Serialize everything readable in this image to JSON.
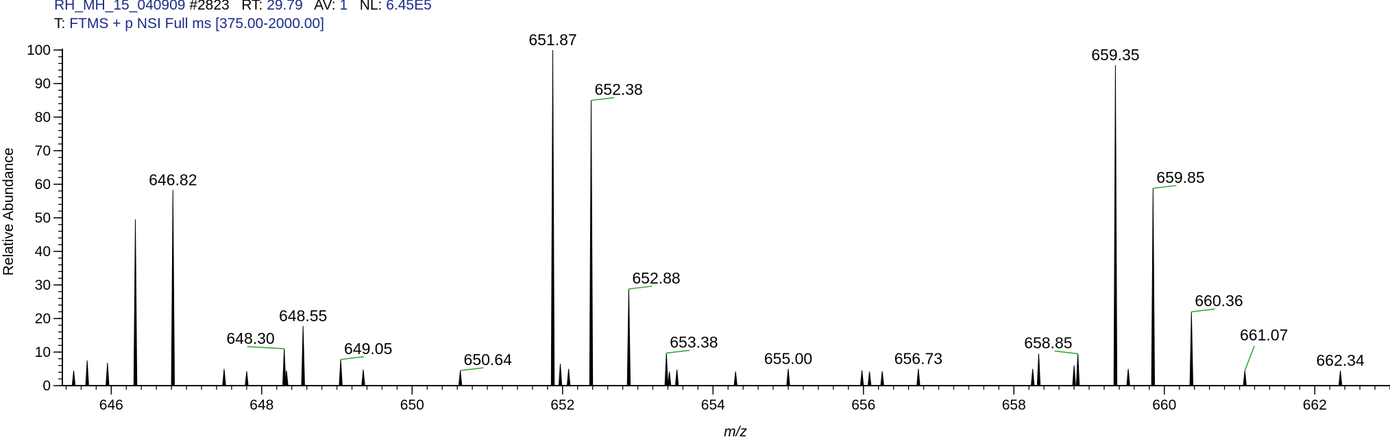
{
  "header": {
    "line1": {
      "filename": "RH_MH_15_040909",
      "scan": "#2823",
      "rt_key": "RT:",
      "rt_value": "29.79",
      "av_key": "AV:",
      "av_value": "1",
      "nl_key": "NL:",
      "nl_value": "6.45E5"
    },
    "line2": {
      "t_key": "T:",
      "t_value": "FTMS + p NSI Full ms [375.00-2000.00]"
    }
  },
  "colors": {
    "header_value": "#1a2a8a",
    "peak": "#000000",
    "leader": "#3aa83a"
  },
  "chart_data": {
    "type": "bar",
    "xlabel": "m/z",
    "ylabel": "Relative Abundance",
    "xlim": [
      645.35,
      663.0
    ],
    "ylim": [
      0,
      100
    ],
    "x_ticks": [
      646,
      648,
      650,
      652,
      654,
      656,
      658,
      660,
      662
    ],
    "x_tick_labels": [
      "646",
      "648",
      "650",
      "652",
      "654",
      "656",
      "658",
      "660",
      "662"
    ],
    "y_ticks": [
      0,
      10,
      20,
      30,
      40,
      50,
      60,
      70,
      80,
      90,
      100
    ],
    "y_tick_labels": [
      "0",
      "10",
      "20",
      "30",
      "40",
      "50",
      "60",
      "70",
      "80",
      "90",
      "100"
    ],
    "peaks": [
      {
        "x": 645.5,
        "y": 4.5
      },
      {
        "x": 645.68,
        "y": 7.5
      },
      {
        "x": 645.95,
        "y": 6.8
      },
      {
        "x": 646.32,
        "y": 49.5
      },
      {
        "x": 646.82,
        "y": 58.3,
        "label": "646.82"
      },
      {
        "x": 647.5,
        "y": 5.0
      },
      {
        "x": 647.8,
        "y": 4.3
      },
      {
        "x": 648.3,
        "y": 11.0,
        "label": "648.30"
      },
      {
        "x": 648.33,
        "y": 4.5
      },
      {
        "x": 648.55,
        "y": 17.8,
        "label": "648.55"
      },
      {
        "x": 649.05,
        "y": 7.8,
        "label": "649.05"
      },
      {
        "x": 649.35,
        "y": 4.8
      },
      {
        "x": 650.64,
        "y": 4.5,
        "label": "650.64"
      },
      {
        "x": 651.87,
        "y": 100.0,
        "label": "651.87"
      },
      {
        "x": 651.97,
        "y": 6.5
      },
      {
        "x": 652.08,
        "y": 5.0
      },
      {
        "x": 652.38,
        "y": 85.0,
        "label": "652.38"
      },
      {
        "x": 652.88,
        "y": 28.8,
        "label": "652.88"
      },
      {
        "x": 653.38,
        "y": 9.7,
        "label": "653.38"
      },
      {
        "x": 653.42,
        "y": 4.2
      },
      {
        "x": 653.52,
        "y": 4.8
      },
      {
        "x": 654.3,
        "y": 4.2
      },
      {
        "x": 655.0,
        "y": 5.0,
        "label": "655.00"
      },
      {
        "x": 655.98,
        "y": 4.6
      },
      {
        "x": 656.08,
        "y": 4.2
      },
      {
        "x": 656.25,
        "y": 4.3
      },
      {
        "x": 656.73,
        "y": 5.0,
        "label": "656.73"
      },
      {
        "x": 658.25,
        "y": 5.0
      },
      {
        "x": 658.33,
        "y": 9.5
      },
      {
        "x": 658.8,
        "y": 6.0
      },
      {
        "x": 658.85,
        "y": 9.5,
        "label": "658.85"
      },
      {
        "x": 659.35,
        "y": 95.5,
        "label": "659.35"
      },
      {
        "x": 659.52,
        "y": 5.0
      },
      {
        "x": 659.85,
        "y": 58.8,
        "label": "659.85"
      },
      {
        "x": 660.36,
        "y": 22.0,
        "label": "660.36"
      },
      {
        "x": 661.07,
        "y": 4.5,
        "label": "661.07"
      },
      {
        "x": 662.34,
        "y": 4.5,
        "label": "662.34"
      }
    ]
  }
}
